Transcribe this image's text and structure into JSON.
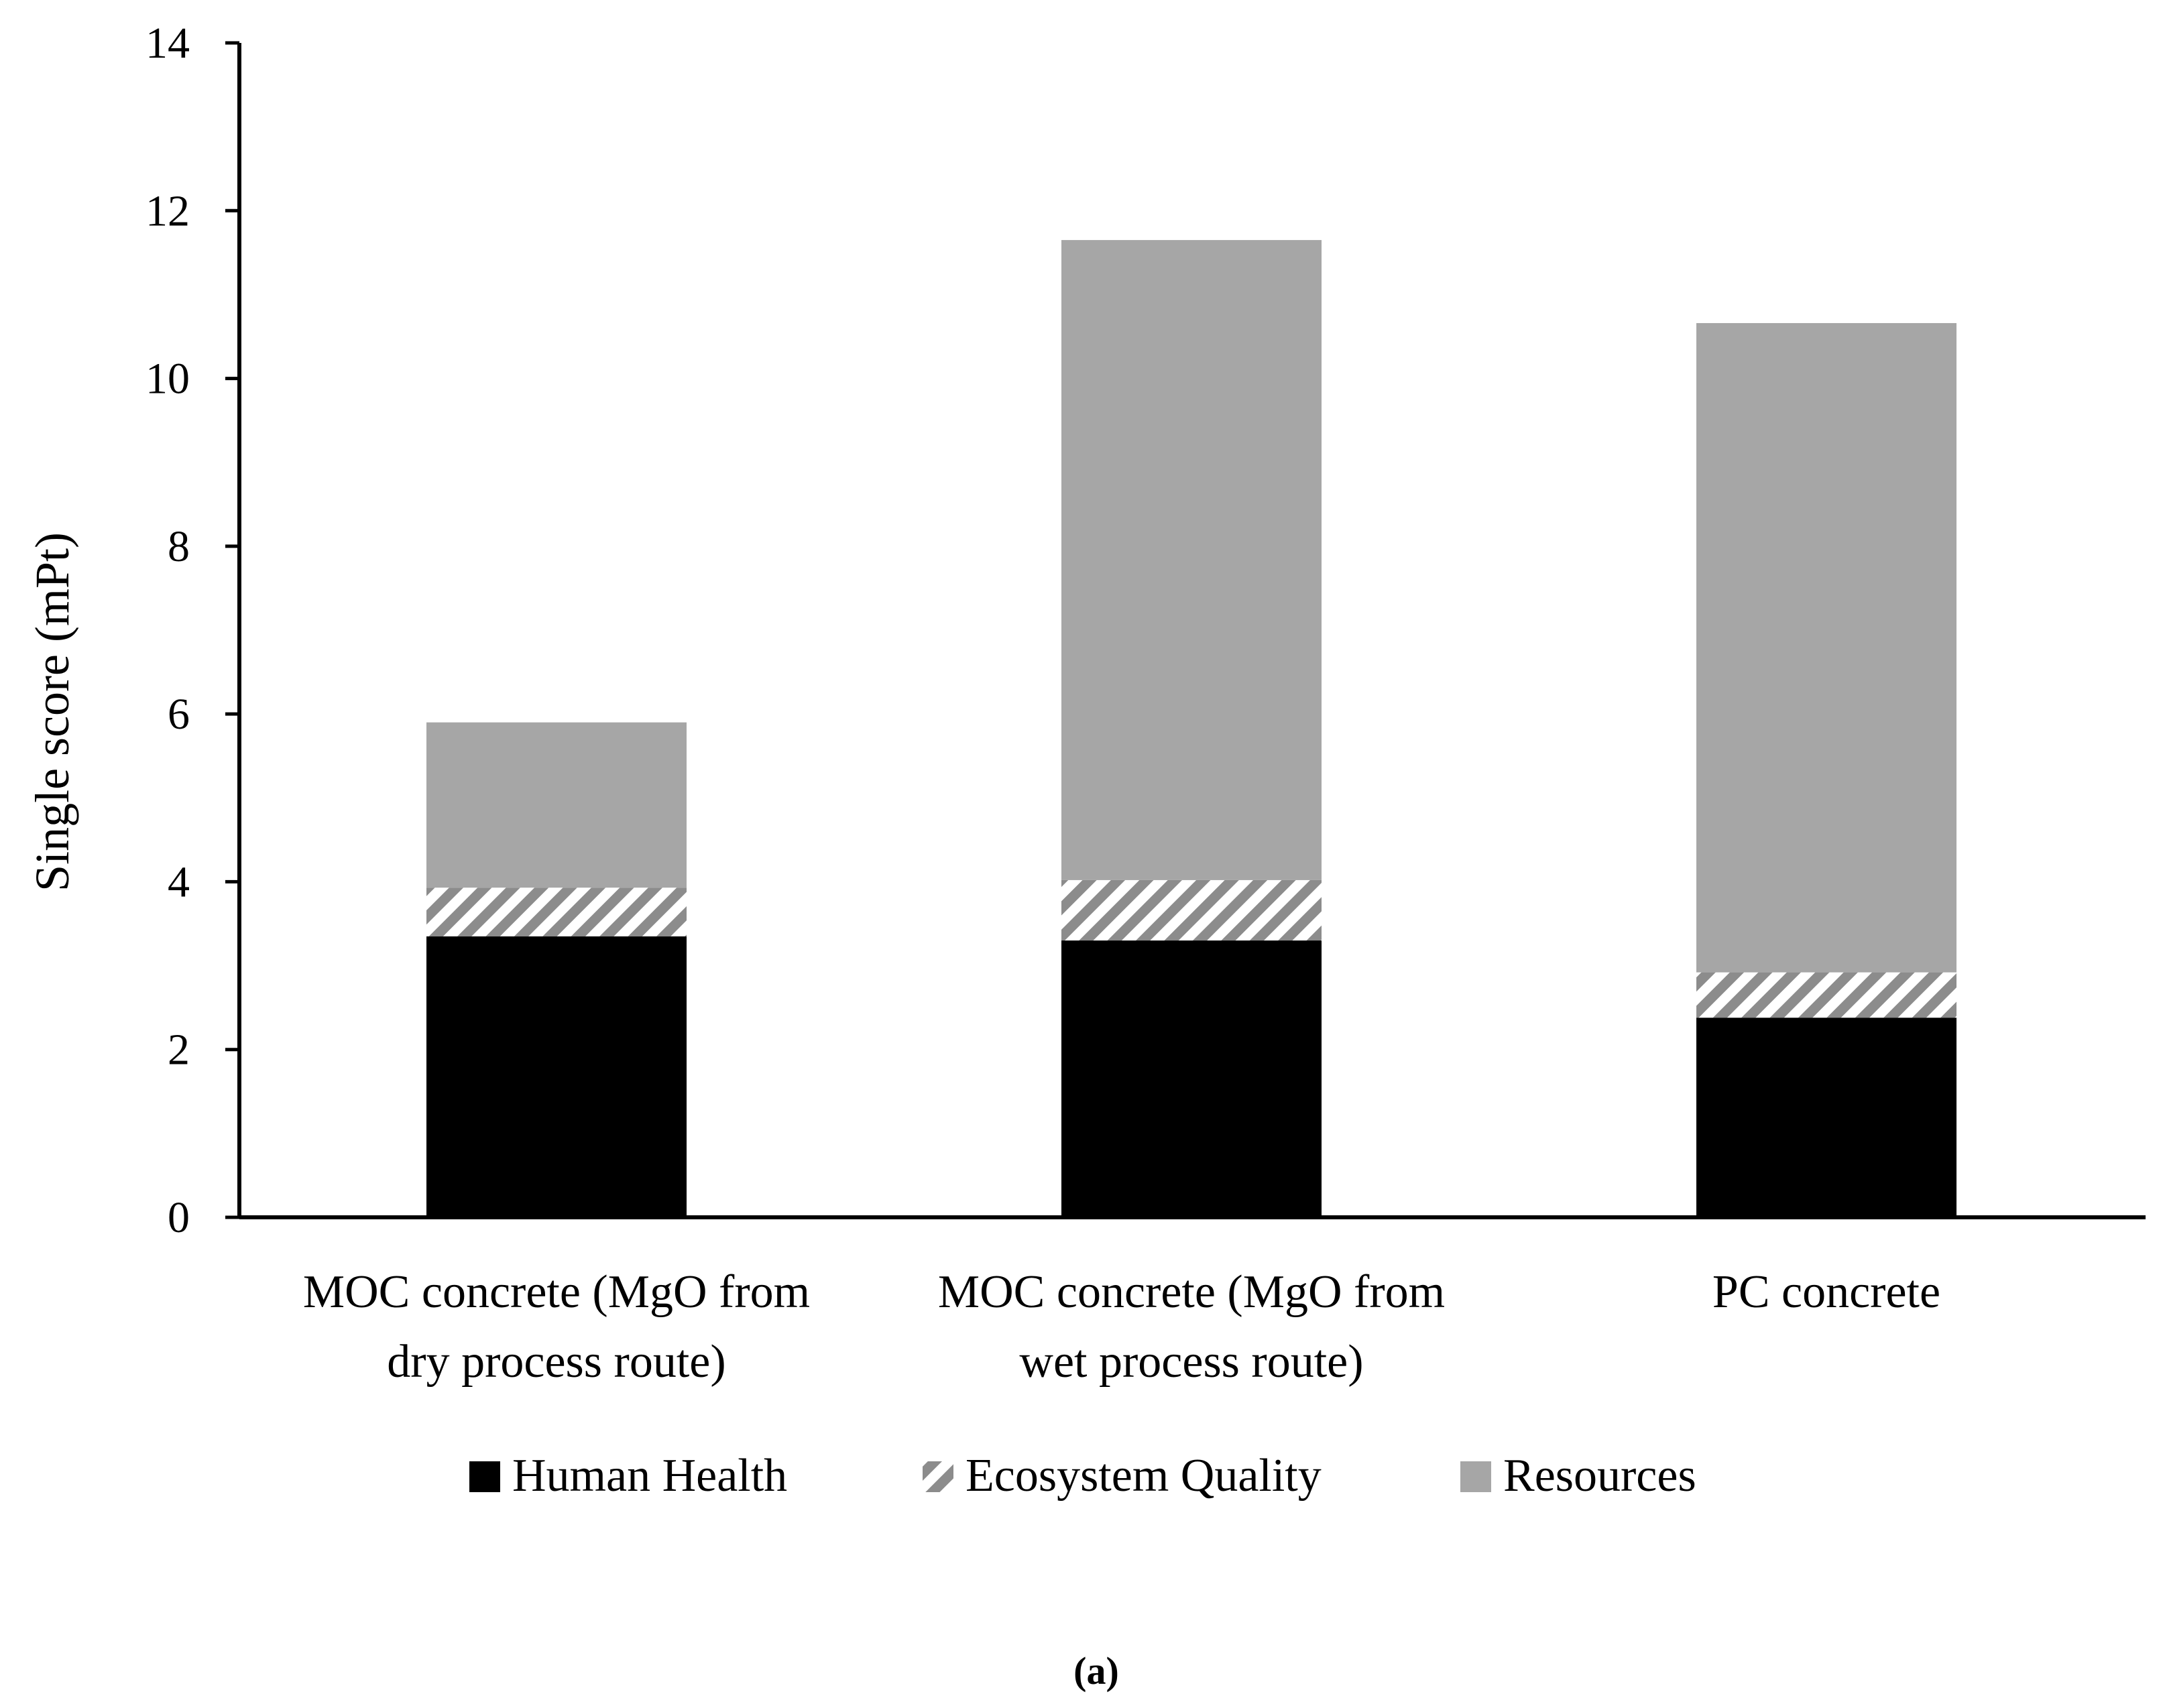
{
  "chart_data": {
    "type": "bar",
    "stacked": true,
    "title": "",
    "xlabel": "",
    "ylabel": "Single score (mPt)",
    "ylim": [
      0,
      14
    ],
    "yticks": [
      0,
      2,
      4,
      6,
      8,
      10,
      12,
      14
    ],
    "grid": false,
    "legend_position": "bottom",
    "categories": [
      [
        "MOC concrete (MgO from",
        "dry process route)"
      ],
      [
        "MOC concrete (MgO from",
        "wet process route)"
      ],
      [
        "PC concrete"
      ]
    ],
    "series": [
      {
        "name": "Human Health",
        "color": "#000000",
        "pattern": "solid",
        "values": [
          3.35,
          3.3,
          2.38
        ]
      },
      {
        "name": "Ecosystem Quality",
        "color": "#8c8c8c",
        "pattern": "diagonal-stripes",
        "values": [
          0.58,
          0.72,
          0.54
        ]
      },
      {
        "name": "Resources",
        "color": "#a6a6a6",
        "pattern": "solid",
        "values": [
          1.97,
          7.63,
          7.74
        ]
      }
    ],
    "caption": "(a)"
  }
}
